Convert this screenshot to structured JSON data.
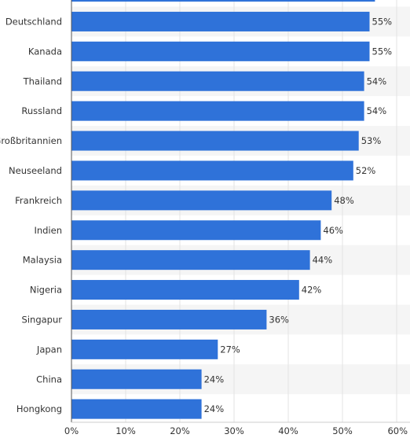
{
  "chart_data": {
    "type": "bar",
    "orientation": "horizontal",
    "categories": [
      "Deutschland",
      "Kanada",
      "Thailand",
      "Russland",
      "Großbritannien",
      "Neuseeland",
      "Frankreich",
      "Indien",
      "Malaysia",
      "Nigeria",
      "Singapur",
      "Japan",
      "China",
      "Hongkong"
    ],
    "values": [
      55,
      55,
      54,
      54,
      53,
      52,
      48,
      46,
      44,
      42,
      36,
      27,
      24,
      24
    ],
    "value_labels": [
      "55%",
      "55%",
      "54%",
      "54%",
      "53%",
      "52%",
      "48%",
      "46%",
      "44%",
      "42%",
      "36%",
      "27%",
      "24%",
      "24%"
    ],
    "cut_off_bar_above": {
      "value": 56
    },
    "xticks": [
      "0%",
      "10%",
      "20%",
      "30%",
      "40%",
      "50%",
      "60%"
    ],
    "xlim": [
      0,
      60
    ],
    "grid": true,
    "legend": "none",
    "bar_color": "#2f72d9",
    "stripe_color": "#f5f5f5"
  }
}
